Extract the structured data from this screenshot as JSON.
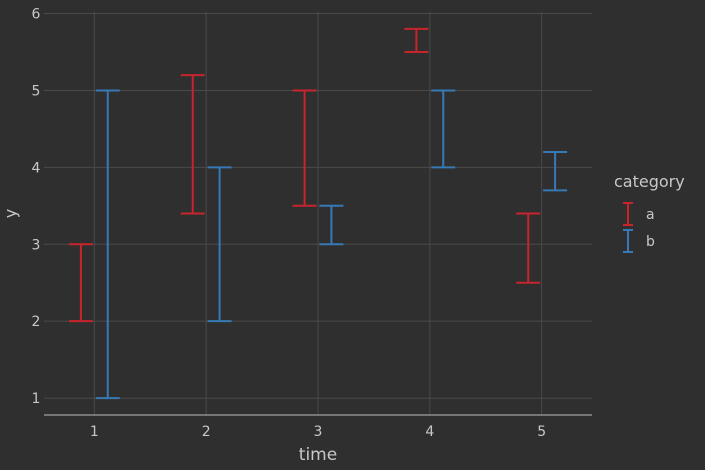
{
  "chart_data": {
    "type": "errorbar",
    "xlabel": "time",
    "ylabel": "y",
    "xlim": [
      0.55,
      5.45
    ],
    "ylim": [
      0.78,
      6.02
    ],
    "xticks": [
      1,
      2,
      3,
      4,
      5
    ],
    "yticks": [
      1,
      2,
      3,
      4,
      5,
      6
    ],
    "grid": true,
    "legend": {
      "title": "category",
      "placement": "right"
    },
    "colors": {
      "background": "#2f2f2f",
      "grid": "#4a4a4a",
      "axis": "#bdbdbd",
      "text": "#c8c8c8"
    },
    "series": [
      {
        "name": "a",
        "color": "#c8242b",
        "points": [
          {
            "time": 1,
            "ymin": 2.0,
            "ymax": 3.0
          },
          {
            "time": 2,
            "ymin": 3.4,
            "ymax": 5.2
          },
          {
            "time": 3,
            "ymin": 3.5,
            "ymax": 5.0
          },
          {
            "time": 4,
            "ymin": 5.5,
            "ymax": 5.8
          },
          {
            "time": 5,
            "ymin": 2.5,
            "ymax": 3.4
          }
        ]
      },
      {
        "name": "b",
        "color": "#3779b5",
        "points": [
          {
            "time": 1,
            "ymin": 1.0,
            "ymax": 5.0
          },
          {
            "time": 2,
            "ymin": 2.0,
            "ymax": 4.0
          },
          {
            "time": 3,
            "ymin": 3.0,
            "ymax": 3.5
          },
          {
            "time": 4,
            "ymin": 4.0,
            "ymax": 5.0
          },
          {
            "time": 5,
            "ymin": 3.7,
            "ymax": 4.2
          }
        ]
      }
    ]
  }
}
